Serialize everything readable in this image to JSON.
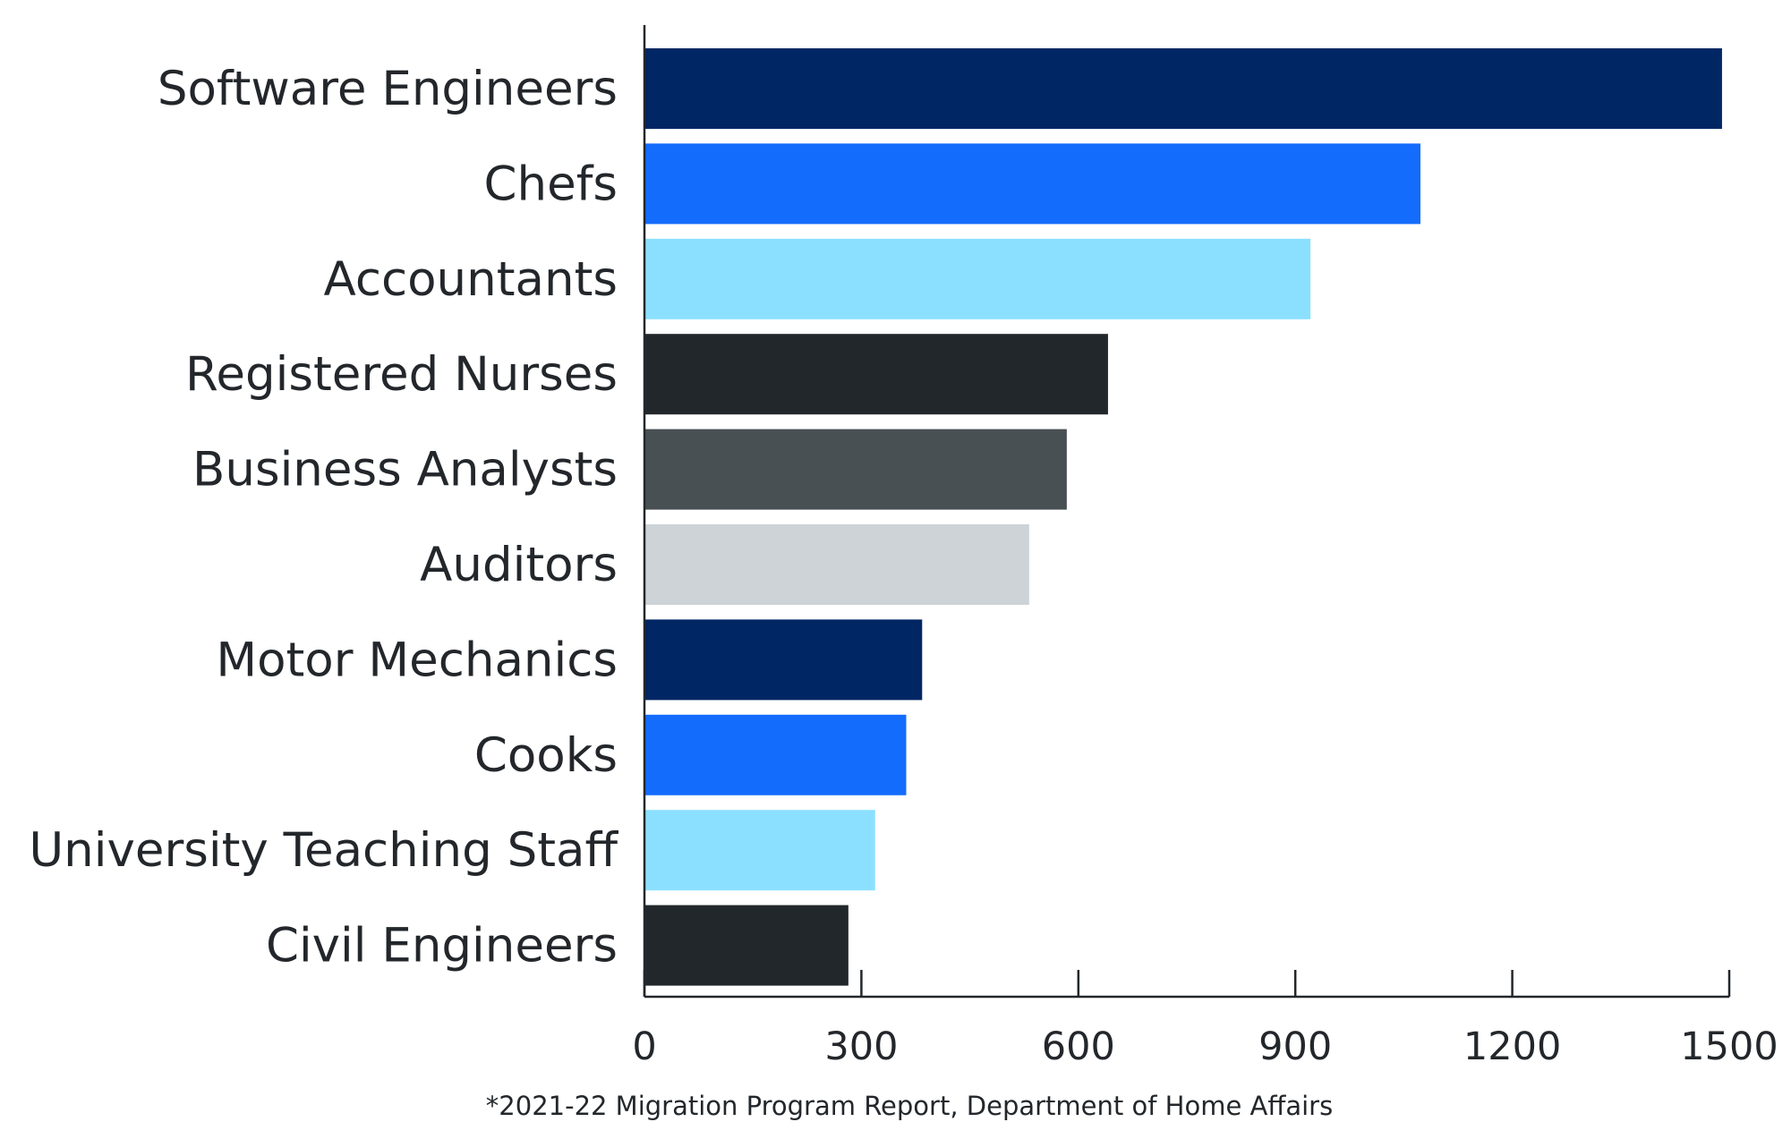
{
  "chart_data": {
    "type": "bar",
    "orientation": "horizontal",
    "categories": [
      "Software Engineers",
      "Chefs",
      "Accountants",
      "Registered Nurses",
      "Business Analysts",
      "Auditors",
      "Motor Mechanics",
      "Cooks",
      "University Teaching Staff",
      "Civil Engineers"
    ],
    "values": [
      1490,
      1073,
      921,
      641,
      584,
      532,
      384,
      362,
      319,
      282
    ],
    "bar_colors": [
      "#002664",
      "#146cfd",
      "#8ce0ff",
      "#22272b",
      "#495054",
      "#cdd3d6",
      "#002664",
      "#146cfd",
      "#8ce0ff",
      "#22272b"
    ],
    "xlim": [
      0,
      1500
    ],
    "xticks": [
      "0",
      "300",
      "600",
      "900",
      "1200",
      "1500"
    ],
    "grid": false,
    "title": "",
    "xlabel": "",
    "ylabel": "",
    "footnote": "*2021-22 Migration Program Report, Department of Home Affairs"
  }
}
